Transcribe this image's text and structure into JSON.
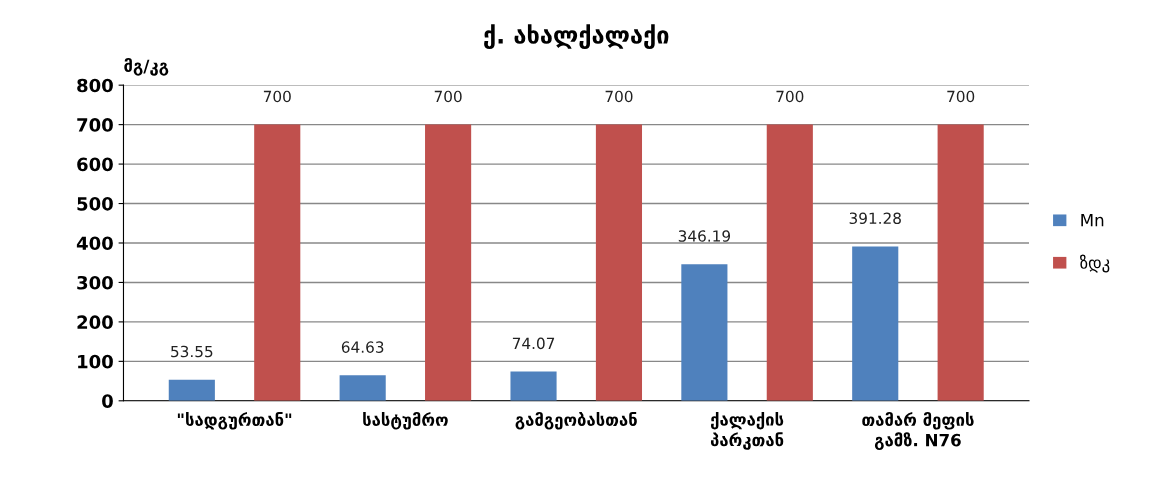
{
  "chart_data": {
    "type": "bar",
    "title": "ქ. ახალქალაქი",
    "ylabel": "მგ/კგ",
    "categories": [
      "\"სადგურთან\"",
      "სასტუმრო",
      "გამგეობასთან",
      "ქალაქის\nპარკთან",
      "თამარ მეფის\nგამზ. N76"
    ],
    "series": [
      {
        "name": "Mn",
        "color": "#4f81bd",
        "values": [
          53.55,
          64.63,
          74.07,
          346.19,
          391.28
        ]
      },
      {
        "name": "ზდკ",
        "color": "#c0504d",
        "values": [
          700,
          700,
          700,
          700,
          700
        ]
      }
    ],
    "ylim": [
      0,
      800
    ],
    "yticks": [
      0,
      100,
      200,
      300,
      400,
      500,
      600,
      700,
      800
    ],
    "grid": "y",
    "legend": "right",
    "data_labels": true
  }
}
